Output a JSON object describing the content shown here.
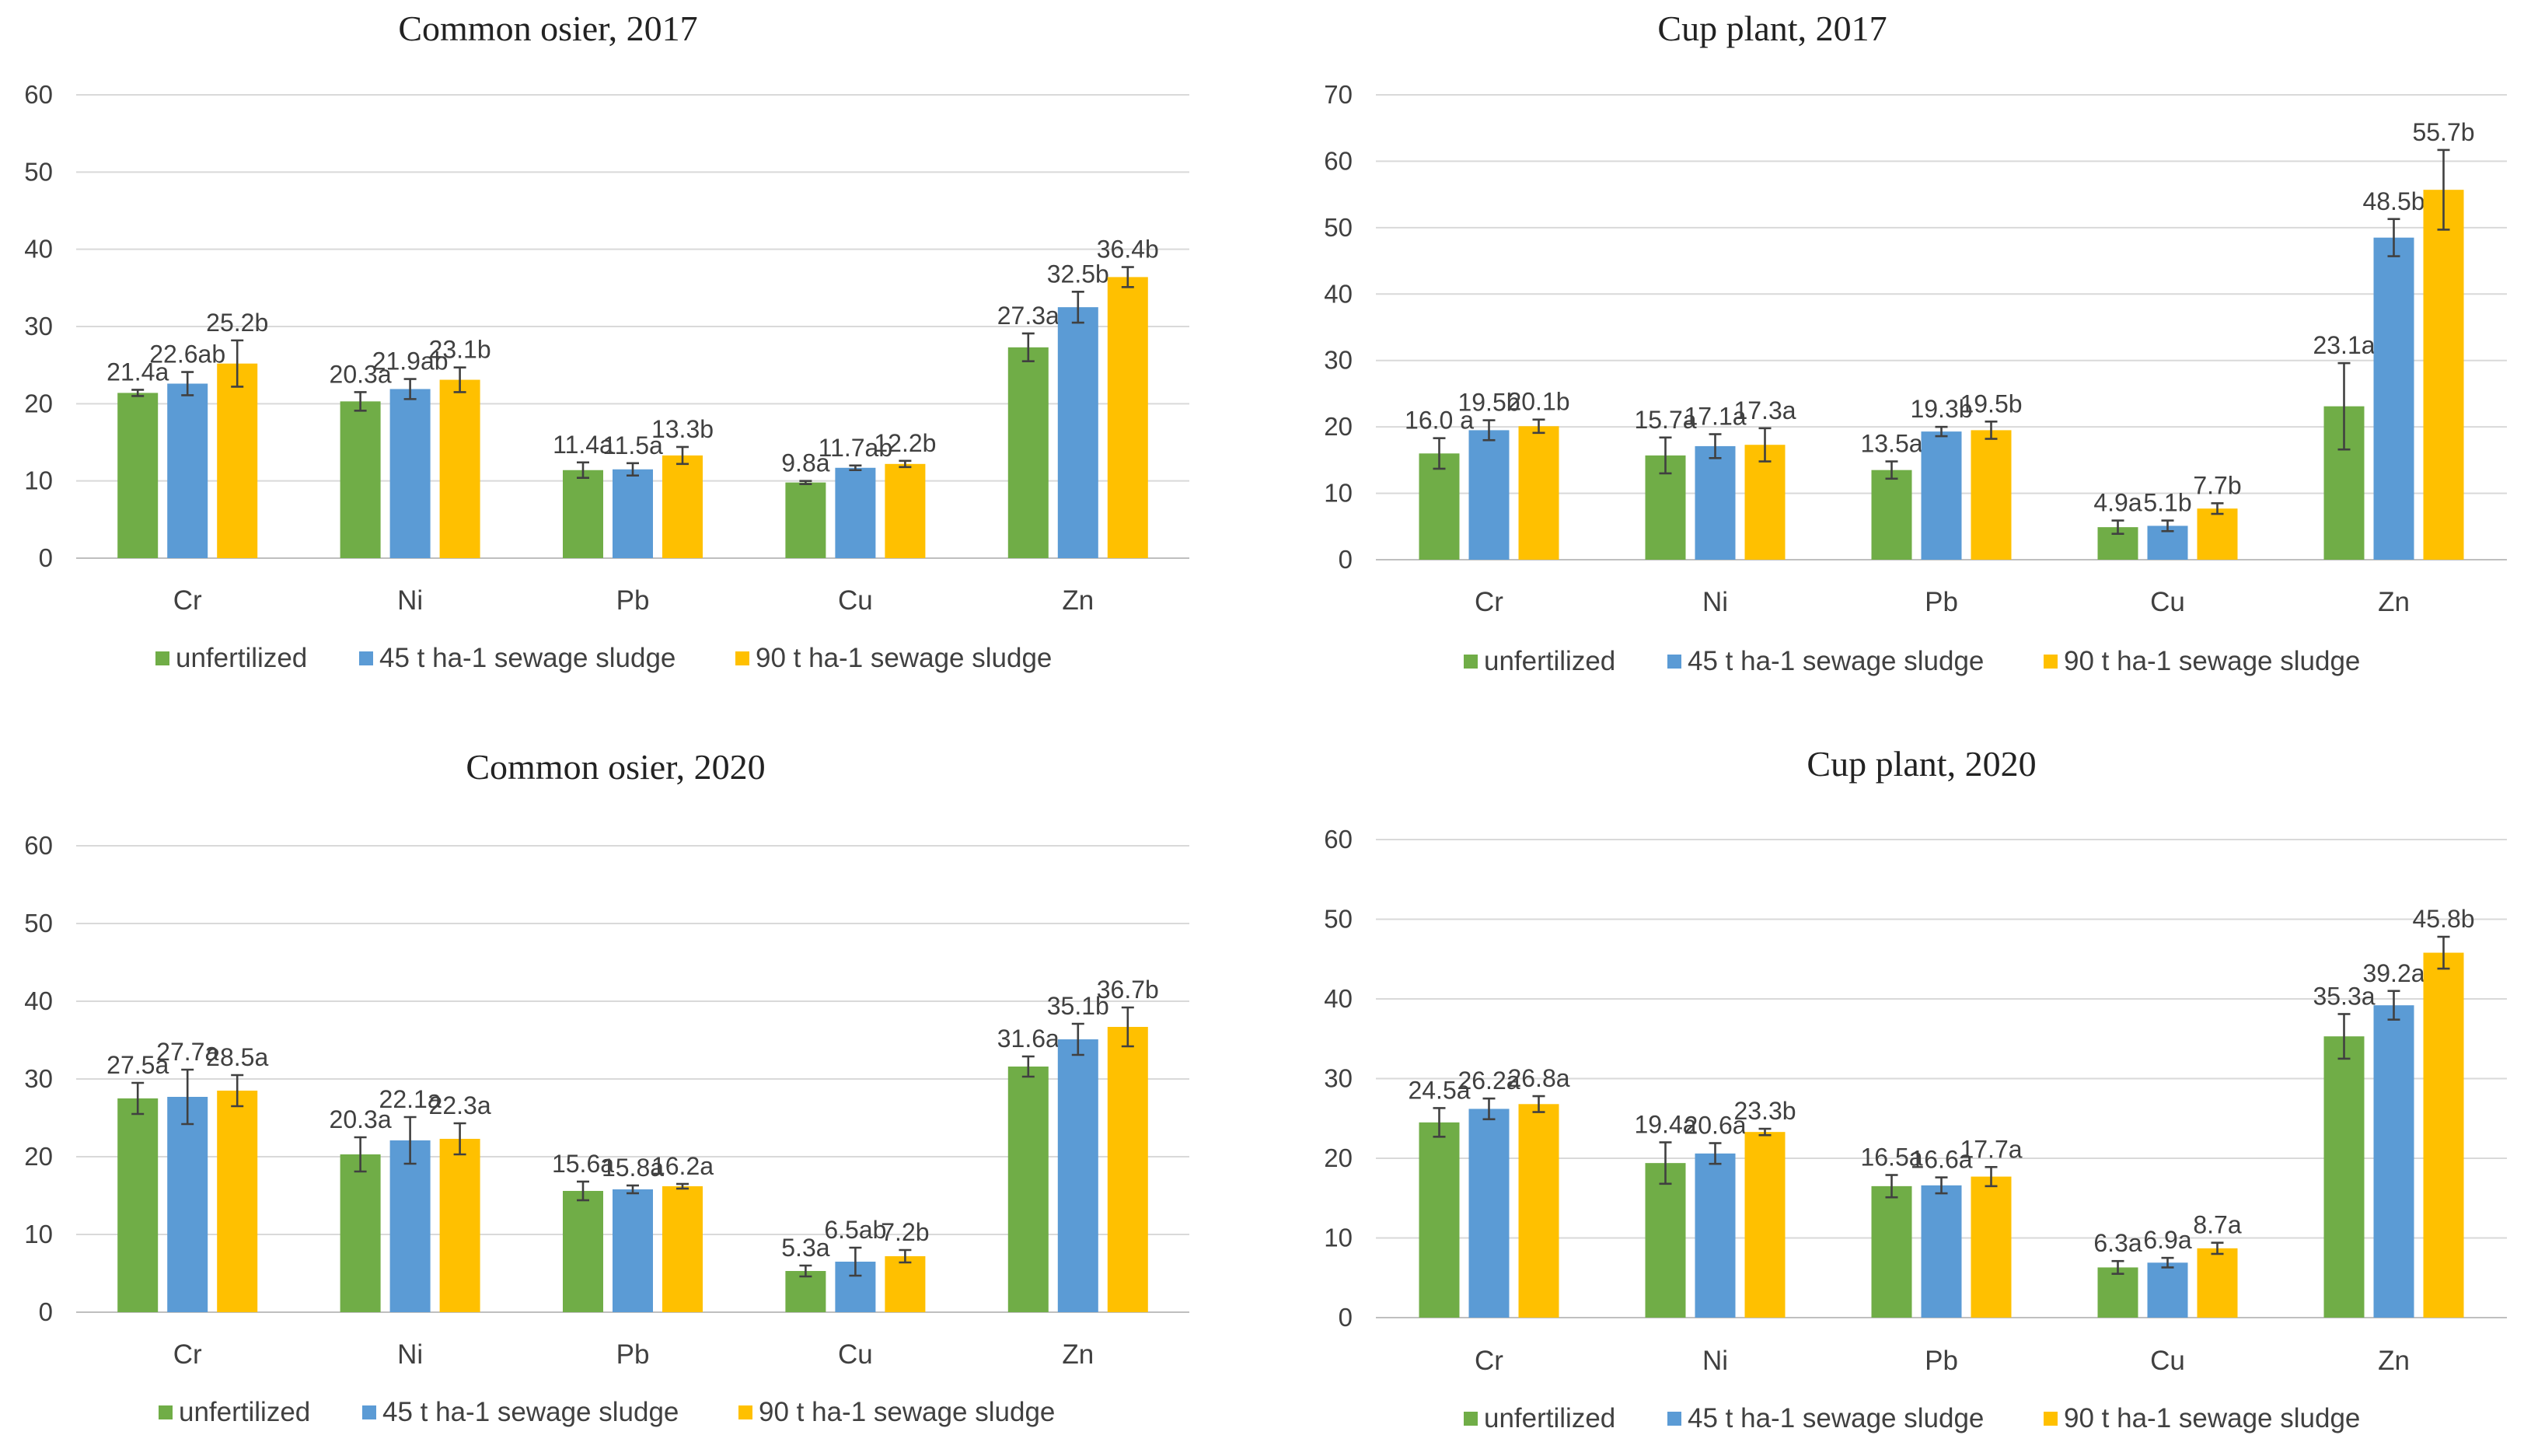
{
  "legend_labels": [
    "unfertilized",
    "45 t ha-1 sewage sludge",
    "90 t ha-1 sewage sludge"
  ],
  "colors": {
    "unfertilized": "#70ad47",
    "s45": "#5b9bd5",
    "s90": "#ffc000"
  },
  "chart_data": [
    {
      "type": "bar",
      "title": "Common osier, 2017",
      "categories": [
        "Cr",
        "Ni",
        "Pb",
        "Cu",
        "Zn"
      ],
      "ylim": [
        0,
        60
      ],
      "yticks": [
        0,
        10,
        20,
        30,
        40,
        50,
        60
      ],
      "ytick_labels": [
        "0",
        "10",
        "20",
        "30",
        "40",
        "50",
        "60"
      ],
      "series": [
        {
          "name": "unfertilized",
          "values": [
            21.4,
            20.3,
            11.4,
            9.8,
            27.3
          ],
          "errors": [
            0.4,
            1.2,
            1.0,
            0.2,
            1.8
          ],
          "labels": [
            "21.4a",
            "20.3a",
            "11.4a",
            "9.8a",
            "27.3a"
          ]
        },
        {
          "name": "45 t ha-1 sewage sludge",
          "values": [
            22.6,
            21.9,
            11.5,
            11.7,
            32.5
          ],
          "errors": [
            1.5,
            1.3,
            0.8,
            0.3,
            2.0
          ],
          "labels": [
            "22.6ab",
            "21.9ab",
            "11.5a",
            "11.7ab",
            "32.5b"
          ]
        },
        {
          "name": "90 t ha-1 sewage sludge",
          "values": [
            25.2,
            23.1,
            13.3,
            12.2,
            36.4
          ],
          "errors": [
            3.0,
            1.6,
            1.1,
            0.4,
            1.3
          ],
          "labels": [
            "25.2b",
            "23.1b",
            "13.3b",
            "12.2b",
            "36.4b"
          ]
        }
      ]
    },
    {
      "type": "bar",
      "title": "Cup plant, 2017",
      "categories": [
        "Cr",
        "Ni",
        "Pb",
        "Cu",
        "Zn"
      ],
      "ylim": [
        0,
        70
      ],
      "yticks": [
        0,
        10,
        20,
        30,
        40,
        50,
        60,
        70
      ],
      "ytick_labels": [
        "0",
        "10",
        "20",
        "30",
        "40",
        "50",
        "60",
        "70"
      ],
      "series": [
        {
          "name": "unfertilized",
          "values": [
            16.0,
            15.7,
            13.5,
            4.9,
            23.1
          ],
          "errors": [
            2.3,
            2.7,
            1.3,
            1.0,
            6.5
          ],
          "labels": [
            "16.0 a",
            "15.7a",
            "13.5a",
            "4.9a",
            "23.1a"
          ]
        },
        {
          "name": "45 t ha-1 sewage sludge",
          "values": [
            19.5,
            17.1,
            19.3,
            5.1,
            48.5
          ],
          "errors": [
            1.5,
            1.8,
            0.7,
            0.8,
            2.8
          ],
          "labels": [
            "19.5b",
            "17.1a",
            "19.3b",
            "5.1b",
            "48.5b"
          ]
        },
        {
          "name": "90 t ha-1 sewage sludge",
          "values": [
            20.1,
            17.3,
            19.5,
            7.7,
            55.7
          ],
          "errors": [
            1.0,
            2.5,
            1.3,
            0.8,
            6.0
          ],
          "labels": [
            "20.1b",
            "17.3a",
            "19.5b",
            "7.7b",
            "55.7b"
          ]
        }
      ]
    },
    {
      "type": "bar",
      "title": "Common osier, 2020",
      "categories": [
        "Cr",
        "Ni",
        "Pb",
        "Cu",
        "Zn"
      ],
      "ylim": [
        0,
        60
      ],
      "yticks": [
        0,
        10,
        20,
        30,
        40,
        50,
        60
      ],
      "ytick_labels": [
        "0",
        "10",
        "20",
        "30",
        "40",
        "50",
        "60"
      ],
      "series": [
        {
          "name": "unfertilized",
          "values": [
            27.5,
            20.3,
            15.6,
            5.3,
            31.6
          ],
          "errors": [
            2.0,
            2.2,
            1.2,
            0.7,
            1.3
          ],
          "labels": [
            "27.5a",
            "20.3a",
            "15.6a",
            "5.3a",
            "31.6a"
          ]
        },
        {
          "name": "45 t ha-1 sewage sludge",
          "values": [
            27.7,
            22.1,
            15.8,
            6.5,
            35.1
          ],
          "errors": [
            3.5,
            3.0,
            0.5,
            1.8,
            2.0
          ],
          "labels": [
            "27.7a",
            "22.1a",
            "15.8a",
            "6.5ab",
            "35.1b"
          ]
        },
        {
          "name": "90 t ha-1 sewage sludge",
          "values": [
            28.5,
            22.3,
            16.2,
            7.2,
            36.7
          ],
          "errors": [
            2.0,
            2.0,
            0.3,
            0.8,
            2.5
          ],
          "labels": [
            "28.5a",
            "22.3a",
            "16.2a",
            "7.2b",
            "36.7b"
          ]
        }
      ]
    },
    {
      "type": "bar",
      "title": "Cup plant, 2020",
      "categories": [
        "Cr",
        "Ni",
        "Pb",
        "Cu",
        "Zn"
      ],
      "ylim": [
        0,
        60
      ],
      "yticks": [
        0,
        10,
        20,
        30,
        40,
        50,
        60
      ],
      "ytick_labels": [
        "0",
        "10",
        "20",
        "30",
        "40",
        "50",
        "60"
      ],
      "series": [
        {
          "name": "unfertilized",
          "values": [
            24.5,
            19.4,
            16.5,
            6.3,
            35.3
          ],
          "errors": [
            1.8,
            2.6,
            1.4,
            0.8,
            2.8
          ],
          "labels": [
            "24.5a",
            "19.4a",
            "16.5a",
            "6.3a",
            "35.3a"
          ]
        },
        {
          "name": "45 t ha-1 sewage sludge",
          "values": [
            26.2,
            20.6,
            16.6,
            6.9,
            39.2
          ],
          "errors": [
            1.3,
            1.3,
            1.0,
            0.6,
            1.8
          ],
          "labels": [
            "26.2a",
            "20.6a",
            "16.6a",
            "6.9a",
            "39.2a"
          ]
        },
        {
          "name": "90 t ha-1 sewage sludge",
          "values": [
            26.8,
            23.3,
            17.7,
            8.7,
            45.8
          ],
          "errors": [
            1.0,
            0.4,
            1.2,
            0.7,
            2.0
          ],
          "labels": [
            "26.8a",
            "23.3b",
            "17.7a",
            "8.7a",
            "45.8b"
          ]
        }
      ]
    }
  ]
}
